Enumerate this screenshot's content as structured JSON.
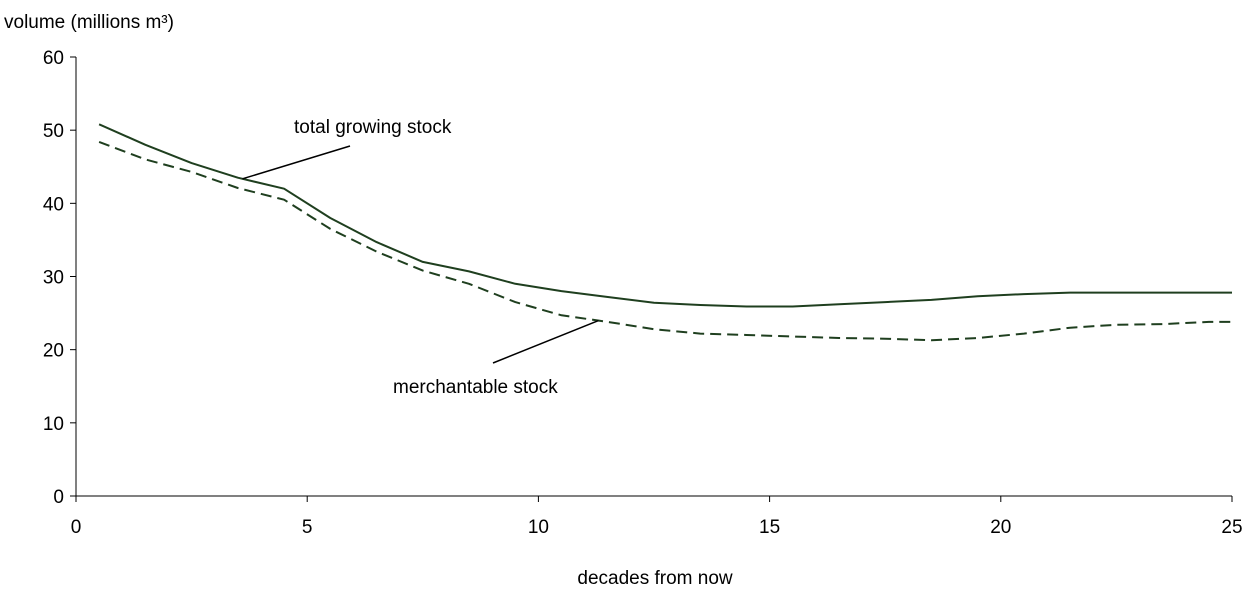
{
  "chart_data": {
    "type": "line",
    "ylabel": "volume (millions m³)",
    "xlabel": "decades from now",
    "xlim": [
      0,
      25
    ],
    "ylim": [
      0,
      60
    ],
    "xticks": [
      0,
      5,
      10,
      15,
      20,
      25
    ],
    "yticks": [
      0,
      10,
      20,
      30,
      40,
      50,
      60
    ],
    "grid": false,
    "legend": "none",
    "series": [
      {
        "name": "total growing stock",
        "color": "#1f3f1f",
        "style": "solid",
        "x": [
          0.5,
          1.5,
          2.5,
          3.5,
          4.5,
          5.5,
          6.5,
          7.5,
          8.5,
          9.5,
          10.5,
          11.5,
          12.5,
          13.5,
          14.5,
          15.5,
          16.5,
          17.5,
          18.5,
          19.5,
          20.5,
          21.5,
          22.5,
          23.5,
          24.5,
          25
        ],
        "values": [
          50.8,
          48.0,
          45.5,
          43.5,
          42.0,
          38.0,
          34.7,
          32.0,
          30.7,
          29.0,
          28.0,
          27.2,
          26.4,
          26.1,
          25.9,
          25.9,
          26.2,
          26.5,
          26.8,
          27.3,
          27.6,
          27.8,
          27.8,
          27.8,
          27.8,
          27.8
        ]
      },
      {
        "name": "merchantable stock",
        "color": "#1f3f1f",
        "style": "dashed",
        "x": [
          0.5,
          1.5,
          2.5,
          3.5,
          4.5,
          5.5,
          6.5,
          7.5,
          8.5,
          9.5,
          10.5,
          11.5,
          12.5,
          13.5,
          14.5,
          15.5,
          16.5,
          17.5,
          18.5,
          19.5,
          20.5,
          21.5,
          22.5,
          23.5,
          24.5,
          25
        ],
        "values": [
          48.4,
          46.0,
          44.3,
          42.1,
          40.5,
          36.5,
          33.4,
          30.8,
          29.0,
          26.5,
          24.7,
          23.8,
          22.8,
          22.2,
          22.0,
          21.8,
          21.6,
          21.5,
          21.3,
          21.6,
          22.2,
          23.0,
          23.4,
          23.5,
          23.8,
          23.8
        ]
      }
    ],
    "annotations": [
      {
        "text": "total growing stock",
        "points_to": "total growing stock",
        "at_x": 3.6
      },
      {
        "text": "merchantable stock",
        "points_to": "merchantable stock",
        "at_x": 11.3
      }
    ]
  }
}
